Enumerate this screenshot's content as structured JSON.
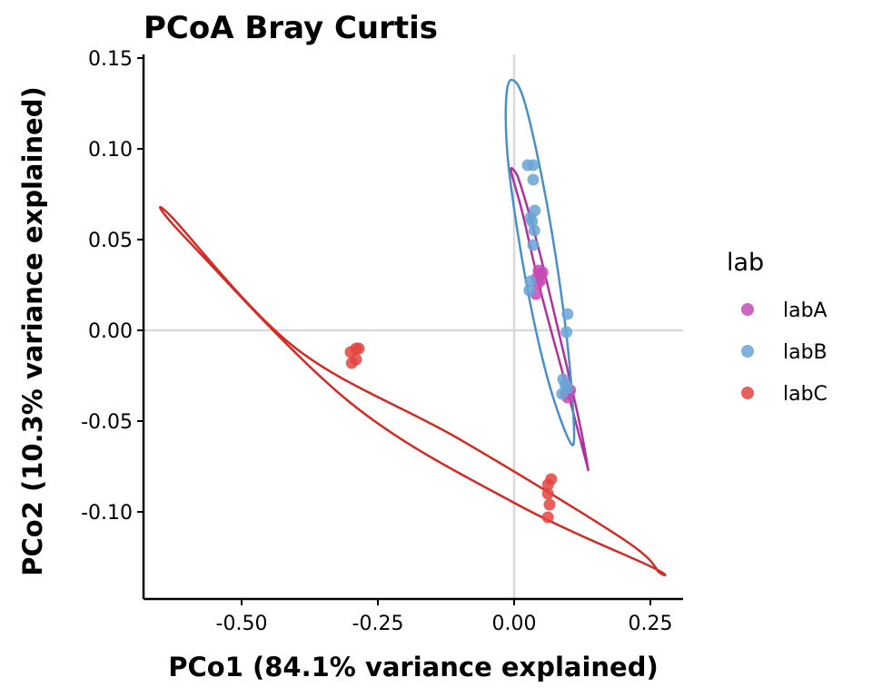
{
  "chart_data": {
    "type": "scatter",
    "title": "PCoA Bray Curtis",
    "xlabel": "PCo1 (84.1% variance explained)",
    "ylabel": "PCo2 (10.3% variance explained)",
    "xlim": [
      -0.68,
      0.31
    ],
    "ylim": [
      -0.148,
      0.152
    ],
    "xticks": [
      -0.5,
      -0.25,
      0.0,
      0.25
    ],
    "xtick_labels": [
      "-0.50",
      "-0.25",
      "0.00",
      "0.25"
    ],
    "yticks": [
      -0.1,
      -0.05,
      0.0,
      0.05,
      0.1,
      0.15
    ],
    "ytick_labels": [
      "-0.10",
      "-0.05",
      "0.00",
      "0.05",
      "0.10",
      "0.15"
    ],
    "zero_lines": true,
    "grid": false,
    "legend": {
      "title": "lab",
      "position": "right"
    },
    "series": [
      {
        "name": "labA",
        "color": "#c54ab5",
        "ellipse_color": "#b0309f",
        "points": [
          [
            0.045,
            0.033
          ],
          [
            0.048,
            0.031
          ],
          [
            0.042,
            0.029
          ],
          [
            0.05,
            0.028
          ],
          [
            0.044,
            0.026
          ],
          [
            0.04,
            0.02
          ],
          [
            0.052,
            0.032
          ],
          [
            0.095,
            -0.035
          ],
          [
            0.1,
            -0.034
          ],
          [
            0.098,
            -0.037
          ],
          [
            0.103,
            -0.033
          ]
        ],
        "ellipse": [
          [
            0.0,
            0.088
          ],
          [
            0.012,
            0.08
          ],
          [
            0.045,
            0.045
          ],
          [
            0.085,
            -0.005
          ],
          [
            0.118,
            -0.048
          ],
          [
            0.135,
            -0.075
          ],
          [
            0.13,
            -0.07
          ],
          [
            0.095,
            -0.03
          ],
          [
            0.05,
            0.02
          ],
          [
            0.015,
            0.065
          ],
          [
            -0.005,
            0.087
          ]
        ]
      },
      {
        "name": "labB",
        "color": "#6aa3d5",
        "ellipse_color": "#4a90c8",
        "points": [
          [
            0.025,
            0.091
          ],
          [
            0.035,
            0.091
          ],
          [
            0.035,
            0.083
          ],
          [
            0.038,
            0.066
          ],
          [
            0.03,
            0.062
          ],
          [
            0.033,
            0.06
          ],
          [
            0.037,
            0.055
          ],
          [
            0.035,
            0.047
          ],
          [
            0.03,
            0.027
          ],
          [
            0.028,
            0.022
          ],
          [
            0.098,
            0.009
          ],
          [
            0.096,
            -0.001
          ],
          [
            0.09,
            -0.027
          ],
          [
            0.094,
            -0.03
          ],
          [
            0.098,
            -0.032
          ],
          [
            0.088,
            -0.035
          ]
        ],
        "ellipse": [
          [
            -0.005,
            0.138
          ],
          [
            0.02,
            0.125
          ],
          [
            0.06,
            0.07
          ],
          [
            0.095,
            0.0
          ],
          [
            0.11,
            -0.055
          ],
          [
            0.1,
            -0.06
          ],
          [
            0.06,
            -0.025
          ],
          [
            0.02,
            0.03
          ],
          [
            -0.01,
            0.09
          ],
          [
            -0.015,
            0.125
          ]
        ]
      },
      {
        "name": "labC",
        "color": "#e3443f",
        "ellipse_color": "#d42a25",
        "points": [
          [
            -0.29,
            -0.01
          ],
          [
            -0.3,
            -0.012
          ],
          [
            -0.285,
            -0.01
          ],
          [
            -0.29,
            -0.016
          ],
          [
            -0.298,
            -0.018
          ],
          [
            0.068,
            -0.082
          ],
          [
            0.062,
            -0.085
          ],
          [
            0.062,
            -0.09
          ],
          [
            0.065,
            -0.096
          ],
          [
            0.062,
            -0.103
          ]
        ],
        "ellipse": [
          [
            -0.63,
            0.063
          ],
          [
            -0.4,
            -0.01
          ],
          [
            -0.1,
            -0.06
          ],
          [
            0.2,
            -0.115
          ],
          [
            0.265,
            -0.133
          ],
          [
            0.25,
            -0.13
          ],
          [
            0.0,
            -0.095
          ],
          [
            -0.3,
            -0.04
          ],
          [
            -0.6,
            0.05
          ]
        ]
      }
    ]
  }
}
